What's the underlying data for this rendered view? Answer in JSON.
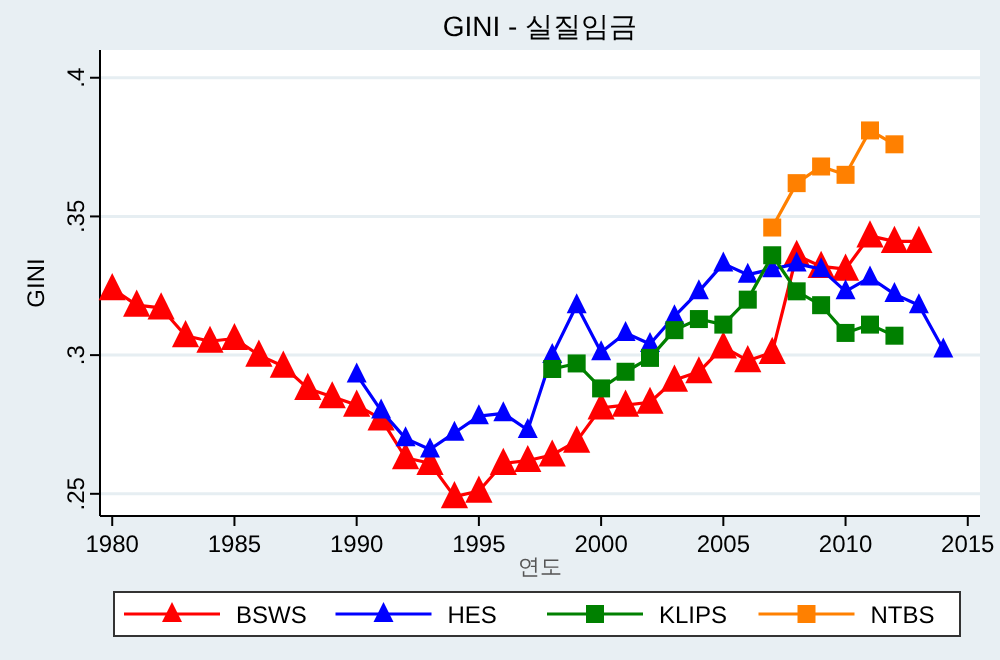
{
  "chart_data": {
    "type": "line",
    "title": "GINI - 실질임금",
    "xlabel": "연도",
    "ylabel": "GINI",
    "xlim": [
      1979.5,
      2015.5
    ],
    "xticks": [
      1980,
      1985,
      1990,
      1995,
      2000,
      2005,
      2010,
      2015
    ],
    "ylim": [
      0.242,
      0.41
    ],
    "yticks": [
      {
        "value": 0.25,
        "label": ".25"
      },
      {
        "value": 0.3,
        "label": ".3"
      },
      {
        "value": 0.35,
        "label": ".35"
      },
      {
        "value": 0.4,
        "label": ".4"
      }
    ],
    "grid": "y",
    "legend": "bottom",
    "line_style": "solid",
    "series": [
      {
        "name": "BSWS",
        "color": "#ff0000",
        "marker": "triangle",
        "x": [
          1980,
          1981,
          1982,
          1983,
          1984,
          1985,
          1986,
          1987,
          1988,
          1989,
          1990,
          1991,
          1992,
          1993,
          1994,
          1995,
          1996,
          1997,
          1998,
          1999,
          2000,
          2001,
          2002,
          2003,
          2004,
          2005,
          2006,
          2007,
          2008,
          2009,
          2010,
          2011,
          2012,
          2013
        ],
        "values": [
          0.324,
          0.318,
          0.317,
          0.307,
          0.305,
          0.306,
          0.3,
          0.296,
          0.288,
          0.285,
          0.282,
          0.277,
          0.263,
          0.261,
          0.249,
          0.251,
          0.261,
          0.262,
          0.264,
          0.269,
          0.281,
          0.282,
          0.283,
          0.291,
          0.294,
          0.303,
          0.298,
          0.301,
          0.336,
          0.332,
          0.331,
          0.343,
          0.341,
          0.341
        ]
      },
      {
        "name": "HES",
        "color": "#0000ff",
        "marker": "triangle",
        "x": [
          1990,
          1991,
          1992,
          1993,
          1994,
          1995,
          1996,
          1997,
          1998,
          1999,
          2000,
          2001,
          2002,
          2003,
          2004,
          2005,
          2006,
          2007,
          2008,
          2009,
          2010,
          2011,
          2012,
          2013,
          2014
        ],
        "values": [
          0.293,
          0.28,
          0.27,
          0.266,
          0.272,
          0.278,
          0.279,
          0.273,
          0.3,
          0.318,
          0.301,
          0.308,
          0.304,
          0.314,
          0.323,
          0.333,
          0.329,
          0.331,
          0.333,
          0.331,
          0.323,
          0.328,
          0.322,
          0.318,
          0.302
        ]
      },
      {
        "name": "KLIPS",
        "color": "#008000",
        "marker": "square",
        "x": [
          1998,
          1999,
          2000,
          2001,
          2002,
          2003,
          2004,
          2005,
          2006,
          2007,
          2008,
          2009,
          2010,
          2011,
          2012
        ],
        "values": [
          0.295,
          0.297,
          0.288,
          0.294,
          0.299,
          0.309,
          0.313,
          0.311,
          0.32,
          0.336,
          0.323,
          0.318,
          0.308,
          0.311,
          0.307
        ]
      },
      {
        "name": "NTBS",
        "color": "#ff8000",
        "marker": "square",
        "x": [
          2007,
          2008,
          2009,
          2010,
          2011,
          2012
        ],
        "values": [
          0.346,
          0.362,
          0.368,
          0.365,
          0.381,
          0.376
        ]
      }
    ]
  }
}
